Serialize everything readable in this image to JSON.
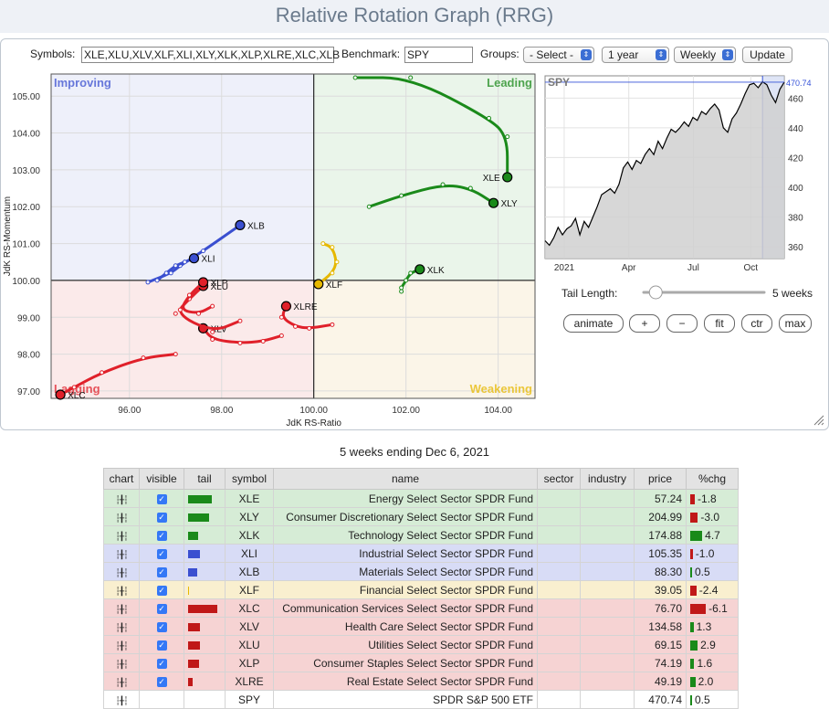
{
  "title": "Relative Rotation Graph (RRG)",
  "controls": {
    "symbols_label": "Symbols:",
    "symbols_value": "XLE,XLU,XLV,XLF,XLI,XLY,XLK,XLP,XLRE,XLC,XLB",
    "benchmark_label": "Benchmark:",
    "benchmark_value": "SPY",
    "groups_label": "Groups:",
    "groups_value": "- Select -",
    "period_value": "1 year",
    "interval_value": "Weekly",
    "update_label": "Update"
  },
  "rrg": {
    "quadrants": {
      "improving": "Improving",
      "leading": "Leading",
      "weakening": "Weakening",
      "lagging": "Lagging"
    },
    "x_axis_label": "JdK RS-Ratio",
    "y_axis_label": "JdK RS-Momentum",
    "x_ticks": [
      "96.00",
      "98.00",
      "100.00",
      "102.00",
      "104.00"
    ],
    "y_ticks": [
      "105.00",
      "104.00",
      "103.00",
      "102.00",
      "101.00",
      "100.00",
      "99.00",
      "98.00",
      "97.00"
    ],
    "colors": {
      "leading": "#1a8a1a",
      "improving": "#3a4fd0",
      "weakening": "#e6b800",
      "lagging": "#e0202a"
    }
  },
  "chart_data": [
    {
      "type": "scatter",
      "xlabel": "JdK RS-Ratio",
      "ylabel": "JdK RS-Momentum",
      "xlim": [
        94.3,
        104.8
      ],
      "ylim": [
        96.8,
        105.6
      ],
      "series": [
        {
          "name": "XLE",
          "color": "#1a8a1a",
          "x": [
            100.9,
            102.1,
            103.8,
            104.2,
            104.2
          ],
          "y": [
            105.5,
            105.5,
            104.4,
            103.9,
            102.8
          ]
        },
        {
          "name": "XLY",
          "color": "#1a8a1a",
          "x": [
            101.2,
            101.9,
            102.8,
            103.4,
            103.9
          ],
          "y": [
            102.0,
            102.3,
            102.6,
            102.5,
            102.1
          ]
        },
        {
          "name": "XLK",
          "color": "#1a8a1a",
          "x": [
            101.9,
            101.9,
            102.0,
            102.1,
            102.3
          ],
          "y": [
            99.7,
            99.8,
            100.0,
            100.2,
            100.3
          ]
        },
        {
          "name": "XLB",
          "color": "#3a4fd0",
          "x": [
            96.4,
            96.9,
            97.1,
            97.6,
            98.4
          ],
          "y": [
            99.95,
            100.2,
            100.4,
            100.8,
            101.5
          ]
        },
        {
          "name": "XLI",
          "color": "#3a4fd0",
          "x": [
            96.6,
            96.8,
            97.0,
            97.2,
            97.4
          ],
          "y": [
            100.0,
            100.2,
            100.4,
            100.5,
            100.6
          ]
        },
        {
          "name": "XLF",
          "color": "#e6b800",
          "x": [
            100.2,
            100.4,
            100.5,
            100.4,
            100.1
          ],
          "y": [
            101.0,
            100.9,
            100.5,
            100.2,
            99.9
          ]
        },
        {
          "name": "XLC",
          "color": "#e0202a",
          "x": [
            97.0,
            96.3,
            95.4,
            94.8,
            94.5
          ],
          "y": [
            98.0,
            97.9,
            97.5,
            97.1,
            96.9
          ]
        },
        {
          "name": "XLV",
          "color": "#e0202a",
          "x": [
            99.3,
            98.9,
            98.4,
            97.8,
            97.6
          ],
          "y": [
            98.5,
            98.35,
            98.3,
            98.4,
            98.7
          ]
        },
        {
          "name": "XLU",
          "color": "#e0202a",
          "x": [
            98.4,
            97.8,
            97.0,
            97.3,
            97.6
          ],
          "y": [
            98.9,
            98.6,
            99.1,
            99.5,
            99.85
          ]
        },
        {
          "name": "XLP",
          "color": "#e0202a",
          "x": [
            97.8,
            97.5,
            97.1,
            97.3,
            97.6
          ],
          "y": [
            99.3,
            99.1,
            99.2,
            99.6,
            99.95
          ]
        },
        {
          "name": "XLRE",
          "color": "#e0202a",
          "x": [
            100.4,
            99.9,
            99.6,
            99.3,
            99.4
          ],
          "y": [
            98.8,
            98.7,
            98.75,
            99.0,
            99.3
          ]
        }
      ]
    },
    {
      "type": "area",
      "title": "SPY",
      "x_ticks": [
        "2021",
        "Apr",
        "Jul",
        "Oct"
      ],
      "y_ticks": [
        360,
        380,
        400,
        420,
        440,
        460
      ],
      "ylim": [
        352,
        475
      ],
      "last_value": "470.74",
      "values": [
        364,
        361,
        366,
        373,
        368,
        372,
        374,
        379,
        368,
        377,
        373,
        380,
        387,
        395,
        397,
        399,
        396,
        402,
        413,
        417,
        412,
        418,
        416,
        422,
        426,
        422,
        431,
        426,
        433,
        439,
        437,
        440,
        444,
        441,
        447,
        445,
        451,
        449,
        453,
        456,
        452,
        440,
        437,
        446,
        450,
        456,
        463,
        469,
        470,
        467,
        471,
        469,
        462,
        457,
        466,
        470.74
      ]
    }
  ],
  "side": {
    "tail_length_label": "Tail Length:",
    "tail_length_value": "5 weeks",
    "tail_fraction": 0.07,
    "buttons": [
      "animate",
      "+",
      "−",
      "fit",
      "ctr",
      "max"
    ]
  },
  "caption": "5 weeks ending Dec 6, 2021",
  "table": {
    "headers": [
      "chart",
      "visible",
      "tail",
      "symbol",
      "name",
      "sector",
      "industry",
      "price",
      "%chg"
    ],
    "rows": [
      {
        "symbol": "XLE",
        "name": "Energy Select Sector SPDR Fund",
        "price": "57.24",
        "chg": "-1.8",
        "chgv": -1.8,
        "tail": 26,
        "visible": true,
        "bg": "#d6ecd6",
        "tc": "#1a8a1a"
      },
      {
        "symbol": "XLY",
        "name": "Consumer Discretionary Select Sector SPDR Fund",
        "price": "204.99",
        "chg": "-3.0",
        "chgv": -3.0,
        "tail": 23,
        "visible": true,
        "bg": "#d6ecd6",
        "tc": "#1a8a1a"
      },
      {
        "symbol": "XLK",
        "name": "Technology Select Sector SPDR Fund",
        "price": "174.88",
        "chg": "4.7",
        "chgv": 4.7,
        "tail": 11,
        "visible": true,
        "bg": "#d6ecd6",
        "tc": "#1a8a1a"
      },
      {
        "symbol": "XLI",
        "name": "Industrial Select Sector SPDR Fund",
        "price": "105.35",
        "chg": "-1.0",
        "chgv": -1.0,
        "tail": 13,
        "visible": true,
        "bg": "#d8dcf6",
        "tc": "#3a4fd0"
      },
      {
        "symbol": "XLB",
        "name": "Materials Select Sector SPDR Fund",
        "price": "88.30",
        "chg": "0.5",
        "chgv": 0.5,
        "tail": 10,
        "visible": true,
        "bg": "#d8dcf6",
        "tc": "#3a4fd0"
      },
      {
        "symbol": "XLF",
        "name": "Financial Select Sector SPDR Fund",
        "price": "39.05",
        "chg": "-2.4",
        "chgv": -2.4,
        "tail": 1,
        "visible": true,
        "bg": "#f9efcf",
        "tc": "#e6b800"
      },
      {
        "symbol": "XLC",
        "name": "Communication Services Select Sector SPDR Fund",
        "price": "76.70",
        "chg": "-6.1",
        "chgv": -6.1,
        "tail": 32,
        "visible": true,
        "bg": "#f6d3d3",
        "tc": "#c01818"
      },
      {
        "symbol": "XLV",
        "name": "Health Care Select Sector SPDR Fund",
        "price": "134.58",
        "chg": "1.3",
        "chgv": 1.3,
        "tail": 13,
        "visible": true,
        "bg": "#f6d3d3",
        "tc": "#c01818"
      },
      {
        "symbol": "XLU",
        "name": "Utilities Select Sector SPDR Fund",
        "price": "69.15",
        "chg": "2.9",
        "chgv": 2.9,
        "tail": 13,
        "visible": true,
        "bg": "#f6d3d3",
        "tc": "#c01818"
      },
      {
        "symbol": "XLP",
        "name": "Consumer Staples Select Sector SPDR Fund",
        "price": "74.19",
        "chg": "1.6",
        "chgv": 1.6,
        "tail": 12,
        "visible": true,
        "bg": "#f6d3d3",
        "tc": "#c01818"
      },
      {
        "symbol": "XLRE",
        "name": "Real Estate Select Sector SPDR Fund",
        "price": "49.19",
        "chg": "2.0",
        "chgv": 2.0,
        "tail": 5,
        "visible": true,
        "bg": "#f6d3d3",
        "tc": "#c01818"
      },
      {
        "symbol": "SPY",
        "name": "SPDR S&P 500 ETF",
        "price": "470.74",
        "chg": "0.5",
        "chgv": 0.5,
        "tail": 0,
        "visible": false,
        "bg": "#ffffff",
        "tc": "#888"
      }
    ]
  }
}
